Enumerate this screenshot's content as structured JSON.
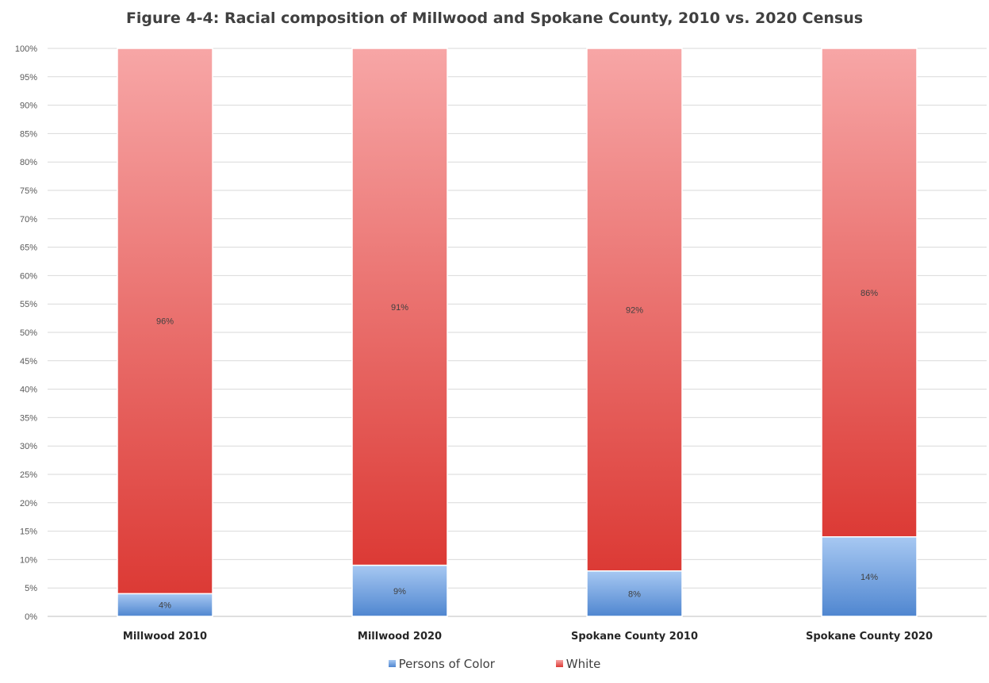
{
  "chart_data": {
    "type": "bar",
    "stacked": true,
    "title": "Figure 4-4: Racial composition of Millwood and Spokane County, 2010 vs. 2020 Census",
    "categories": [
      "Millwood 2010",
      "Millwood 2020",
      "Spokane County 2010",
      "Spokane County 2020"
    ],
    "series": [
      {
        "name": "Persons of Color",
        "values": [
          4,
          9,
          8,
          14
        ],
        "labels": [
          "4%",
          "9%",
          "8%",
          "14%"
        ],
        "color": "#6fa1e4"
      },
      {
        "name": "White",
        "values": [
          96,
          91,
          92,
          86
        ],
        "labels": [
          "96%",
          "91%",
          "92%",
          "86%"
        ],
        "color": "#e24f4f"
      }
    ],
    "ylim": [
      0,
      100
    ],
    "ytick_step": 5,
    "ytick_labels": [
      "0%",
      "5%",
      "10%",
      "15%",
      "20%",
      "25%",
      "30%",
      "35%",
      "40%",
      "45%",
      "50%",
      "55%",
      "60%",
      "65%",
      "70%",
      "75%",
      "80%",
      "85%",
      "90%",
      "95%",
      "100%"
    ],
    "xlabel": "",
    "ylabel": "",
    "grid": true,
    "legend_position": "bottom"
  }
}
